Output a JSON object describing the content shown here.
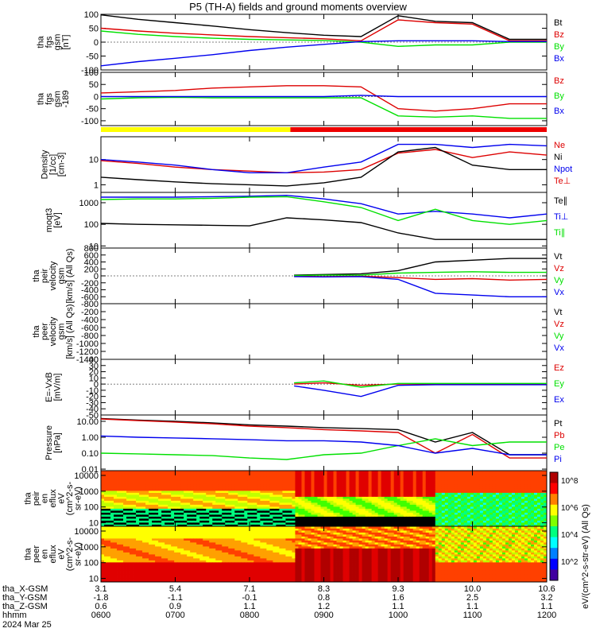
{
  "title": "P5 (TH-A) fields and ground moments overview",
  "date_label": "2024 Mar 25",
  "colors": {
    "black": "#000000",
    "red": "#dd0000",
    "green": "#00e000",
    "blue": "#0000ee"
  },
  "status_bar": {
    "colors": [
      "#ffff00",
      "#ee0000"
    ],
    "switch_hour": 8.55
  },
  "time_axis": {
    "range_hours": [
      6,
      12
    ],
    "rows": [
      {
        "label": "tha_X-GSM",
        "values": [
          "3.1",
          "5.4",
          "7.1",
          "8.3",
          "9.3",
          "10.0",
          "10.6"
        ]
      },
      {
        "label": "tha_Y-GSM",
        "values": [
          "-1.8",
          "-1.1",
          "-0.1",
          "0.8",
          "1.6",
          "2.5",
          "3.2"
        ]
      },
      {
        "label": "tha_Z-GSM",
        "values": [
          "0.6",
          "0.9",
          "1.1",
          "1.2",
          "1.1",
          "1.1",
          "1.1"
        ]
      },
      {
        "label": "hhmm",
        "values": [
          "0600",
          "0700",
          "0800",
          "0900",
          "1000",
          "1100",
          "1200"
        ]
      }
    ]
  },
  "colorbar": {
    "ticks": [
      "10^8",
      "10^6",
      "10^4",
      "10^2"
    ],
    "label": "eV/(cm^2-s-str-eV) (All Qs)"
  },
  "chart_data": [
    {
      "id": "fgs",
      "type": "line",
      "ylabel": [
        "tha",
        "fgs",
        "gsm",
        "[nT]"
      ],
      "ylim": [
        -100,
        100
      ],
      "yticks": [
        "100",
        "50",
        "0",
        "-50",
        "-100"
      ],
      "yticks_values": [
        100,
        50,
        0,
        -50,
        -100
      ],
      "series": [
        {
          "name": "Bt",
          "color": "black"
        },
        {
          "name": "Bz",
          "color": "red"
        },
        {
          "name": "By",
          "color": "green"
        },
        {
          "name": "Bx",
          "color": "blue"
        }
      ],
      "x": [
        6.0,
        6.5,
        7.0,
        7.5,
        8.0,
        8.5,
        9.0,
        9.5,
        10.0,
        10.5,
        11.0,
        11.5,
        12.0
      ],
      "values": {
        "Bx": [
          -85,
          -70,
          -58,
          -45,
          -30,
          -18,
          -8,
          2,
          5,
          5,
          5,
          2,
          2
        ],
        "By": [
          40,
          28,
          20,
          14,
          10,
          8,
          6,
          0,
          -15,
          -10,
          -10,
          0,
          0
        ],
        "Bz": [
          50,
          40,
          32,
          26,
          20,
          16,
          12,
          5,
          80,
          70,
          65,
          5,
          5
        ],
        "Bt": [
          98,
          82,
          70,
          58,
          45,
          34,
          25,
          20,
          95,
          75,
          70,
          10,
          10
        ]
      }
    },
    {
      "id": "fgs_ex",
      "type": "line",
      "ylabel": [
        "tha",
        "fgs",
        "gsm",
        "-189"
      ],
      "ylim": [
        -120,
        100
      ],
      "yticks": [
        "100",
        "50",
        "0",
        "-50",
        "-100"
      ],
      "yticks_values": [
        100,
        50,
        0,
        -50,
        -100
      ],
      "series": [
        {
          "name": "Bz",
          "color": "red"
        },
        {
          "name": "By",
          "color": "green"
        },
        {
          "name": "Bx",
          "color": "blue"
        }
      ],
      "x": [
        6.0,
        6.5,
        7.0,
        7.5,
        8.0,
        8.5,
        9.0,
        9.5,
        10.0,
        10.5,
        11.0,
        11.5,
        12.0
      ],
      "values": {
        "Bz": [
          15,
          20,
          25,
          35,
          40,
          45,
          45,
          40,
          -50,
          -60,
          -50,
          -30,
          -30
        ],
        "By": [
          -10,
          -5,
          -3,
          -5,
          -5,
          -5,
          -5,
          -5,
          -80,
          -85,
          -80,
          -90,
          -90
        ],
        "Bx": [
          0,
          0,
          0,
          0,
          0,
          0,
          0,
          5,
          0,
          0,
          0,
          0,
          0
        ]
      }
    },
    {
      "id": "density",
      "type": "line",
      "log": true,
      "ylabel": [
        "Density",
        "[1/cc]",
        "[cm-3]"
      ],
      "ylim": [
        0.5,
        80
      ],
      "yticks": [
        "10",
        "1"
      ],
      "yticks_values": [
        10,
        1
      ],
      "series": [
        {
          "name": "Ne",
          "color": "red"
        },
        {
          "name": "Ni",
          "color": "black"
        },
        {
          "name": "Npot",
          "color": "blue"
        },
        {
          "name": "Te⊥",
          "color": "red"
        }
      ],
      "x": [
        6.0,
        6.5,
        7.0,
        7.5,
        8.0,
        8.5,
        9.0,
        9.5,
        10.0,
        10.5,
        11.0,
        11.5,
        12.0
      ],
      "values": {
        "Ne": [
          9,
          7,
          5,
          4,
          3.5,
          3,
          3.2,
          4,
          18,
          25,
          12,
          20,
          15
        ],
        "Ni": [
          2,
          1.6,
          1.3,
          1.1,
          1.0,
          0.9,
          1.2,
          2,
          20,
          30,
          6,
          4,
          4
        ],
        "Npot": [
          10,
          8,
          6,
          4,
          3,
          3,
          5,
          8,
          40,
          40,
          30,
          40,
          35
        ]
      }
    },
    {
      "id": "temp",
      "type": "line",
      "log": true,
      "ylabel": [
        "moqt3",
        "[eV]"
      ],
      "ylim": [
        8,
        3000
      ],
      "yticks": [
        "1000",
        "100",
        "10"
      ],
      "yticks_values": [
        1000,
        100,
        10
      ],
      "series": [
        {
          "name": "Te∥",
          "color": "black"
        },
        {
          "name": "Ti⊥",
          "color": "blue"
        },
        {
          "name": "Ti∥",
          "color": "green"
        }
      ],
      "x": [
        6.0,
        6.5,
        7.0,
        7.5,
        8.0,
        8.5,
        9.0,
        9.5,
        10.0,
        10.5,
        11.0,
        11.5,
        12.0
      ],
      "values": {
        "Te∥": [
          110,
          100,
          95,
          90,
          85,
          200,
          160,
          120,
          40,
          20,
          20,
          20,
          20
        ],
        "Ti⊥": [
          1800,
          1800,
          1800,
          1900,
          2000,
          2200,
          1500,
          900,
          300,
          400,
          300,
          200,
          300
        ],
        "Ti∥": [
          1400,
          1500,
          1500,
          1600,
          1800,
          1900,
          1100,
          600,
          150,
          500,
          150,
          100,
          150
        ]
      }
    },
    {
      "id": "vpeir",
      "type": "line",
      "ylabel": [
        "tha",
        "peir",
        "velocity",
        "gsm",
        "[km/s] (All Qs)"
      ],
      "ylim": [
        -800,
        800
      ],
      "yticks": [
        "800",
        "600",
        "400",
        "200",
        "0",
        "-200",
        "-400",
        "-600",
        "-800"
      ],
      "yticks_values": [
        800,
        600,
        400,
        200,
        0,
        -200,
        -400,
        -600,
        -800
      ],
      "series": [
        {
          "name": "Vt",
          "color": "black"
        },
        {
          "name": "Vz",
          "color": "red"
        },
        {
          "name": "Vy",
          "color": "green"
        },
        {
          "name": "Vx",
          "color": "blue"
        }
      ],
      "x": [
        8.6,
        9.0,
        9.5,
        10.0,
        10.5,
        11.0,
        11.5,
        12.0
      ],
      "values": {
        "Vt": [
          20,
          40,
          60,
          150,
          400,
          450,
          500,
          500
        ],
        "Vz": [
          -10,
          -20,
          -10,
          -50,
          -100,
          -80,
          -120,
          -100
        ],
        "Vy": [
          10,
          20,
          20,
          80,
          100,
          120,
          100,
          100
        ],
        "Vx": [
          -20,
          -30,
          -20,
          -100,
          -500,
          -550,
          -600,
          -600
        ]
      }
    },
    {
      "id": "vpeer",
      "type": "line",
      "ylabel": [
        "tha",
        "peer",
        "velocity",
        "gsm",
        "[km/s] (All Qs)"
      ],
      "ylim": [
        -1400,
        0
      ],
      "yticks": [
        "-200",
        "-400",
        "-600",
        "-800",
        "-1000",
        "-1200",
        "-1400"
      ],
      "yticks_values": [
        -200,
        -400,
        -600,
        -800,
        -1000,
        -1200,
        -1400
      ],
      "series": [
        {
          "name": "Vt",
          "color": "black"
        },
        {
          "name": "Vz",
          "color": "red"
        },
        {
          "name": "Vy",
          "color": "green"
        },
        {
          "name": "Vx",
          "color": "blue"
        }
      ],
      "x": [],
      "values": {}
    },
    {
      "id": "efield",
      "type": "line",
      "ylabel": [
        "E=-VxB",
        "[mV/m]"
      ],
      "ylim": [
        -50,
        40
      ],
      "yticks": [
        "40",
        "30",
        "20",
        "10",
        "0",
        "-10",
        "-20",
        "-30",
        "-40",
        "-50"
      ],
      "yticks_values": [
        40,
        30,
        20,
        10,
        0,
        -10,
        -20,
        -30,
        -40,
        -50
      ],
      "series": [
        {
          "name": "Ez",
          "color": "red"
        },
        {
          "name": "Ey",
          "color": "green"
        },
        {
          "name": "Ex",
          "color": "blue"
        }
      ],
      "x": [
        8.6,
        9.0,
        9.5,
        10.0,
        10.5,
        11.0,
        11.5,
        12.0
      ],
      "values": {
        "Ez": [
          0,
          2,
          -2,
          0,
          0,
          0,
          0,
          0
        ],
        "Ey": [
          2,
          5,
          -5,
          1,
          1,
          1,
          1,
          1
        ],
        "Ex": [
          -3,
          -10,
          -20,
          -2,
          -1,
          -1,
          -1,
          -1
        ]
      }
    },
    {
      "id": "pressure",
      "type": "line",
      "log": true,
      "ylabel": [
        "Pressure",
        "[nPa]"
      ],
      "ylim": [
        0.008,
        25
      ],
      "yticks": [
        "10.00",
        "1.00",
        "0.10",
        "0.01"
      ],
      "yticks_values": [
        10,
        1,
        0.1,
        0.01
      ],
      "series": [
        {
          "name": "Pt",
          "color": "black"
        },
        {
          "name": "Pb",
          "color": "red"
        },
        {
          "name": "Pe",
          "color": "green"
        },
        {
          "name": "Pi",
          "color": "blue"
        }
      ],
      "x": [
        6.0,
        6.5,
        7.0,
        7.5,
        8.0,
        8.5,
        9.0,
        9.5,
        10.0,
        10.5,
        11.0,
        11.5,
        12.0
      ],
      "values": {
        "Pt": [
          15,
          12,
          10,
          8,
          6,
          5,
          4,
          3.5,
          3,
          0.5,
          2,
          0.08,
          0.08
        ],
        "Pb": [
          14,
          11,
          9,
          7,
          5,
          4,
          3,
          2.5,
          2,
          0.1,
          1.5,
          0.05,
          0.05
        ],
        "Pe": [
          0.1,
          0.09,
          0.08,
          0.07,
          0.05,
          0.04,
          0.08,
          0.1,
          0.3,
          0.8,
          0.3,
          0.5,
          0.5
        ],
        "Pi": [
          1.2,
          1.0,
          0.9,
          0.8,
          0.7,
          0.6,
          0.6,
          0.5,
          0.3,
          0.1,
          0.2,
          0.08,
          0.08
        ]
      }
    },
    {
      "id": "peir_spec",
      "type": "heatmap",
      "ylabel": [
        "tha",
        "peir",
        "en",
        "eflux",
        "eV",
        "(cm^2-s-",
        "sr-eV)"
      ],
      "log": true,
      "ylim": [
        6,
        20000
      ],
      "yticks": [
        "10000",
        "1000",
        "100",
        "10"
      ],
      "yticks_values": [
        10000,
        1000,
        100,
        10
      ]
    },
    {
      "id": "peer_spec",
      "type": "heatmap",
      "ylabel": [
        "tha",
        "peer",
        "en",
        "eflux",
        "eV",
        "(cm^2-s-",
        "sr-eV)"
      ],
      "log": true,
      "ylim": [
        6,
        20000
      ],
      "yticks": [
        "10000",
        "1000",
        "100",
        "10"
      ],
      "yticks_values": [
        10000,
        1000,
        100,
        10
      ]
    }
  ]
}
